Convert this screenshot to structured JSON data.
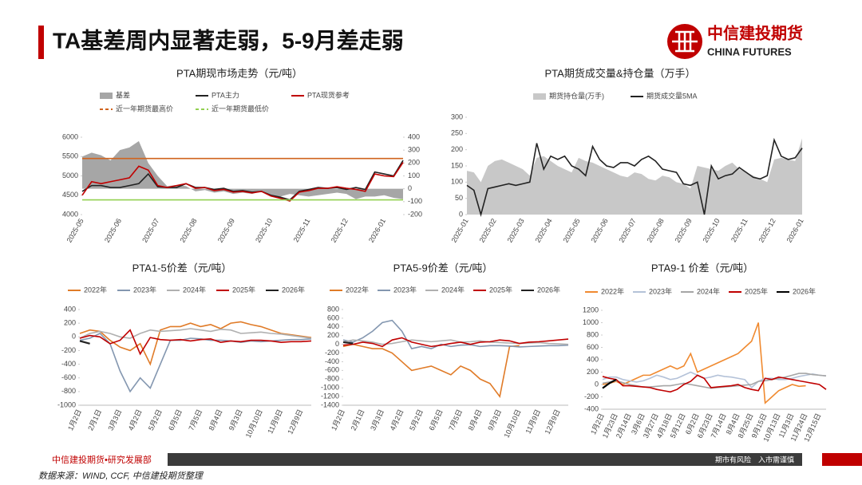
{
  "header": {
    "title": "TA基差周内显著走弱，5-9月差走弱",
    "logo_cn": "中信建投期货",
    "logo_en": "CHINA FUTURES"
  },
  "footer": {
    "left": "中信建投期货•研究发展部",
    "right": "期市有风险　入市需谨慎",
    "source": "数据来源：WIND, CCF, 中信建投期货整理"
  },
  "chart_data": [
    {
      "type": "line",
      "title": "PTA期现市场走势（元/吨）",
      "categories": [
        "2025-05",
        null,
        null,
        null,
        "2025-06",
        null,
        null,
        null,
        "2025-07",
        null,
        null,
        null,
        "2025-08",
        null,
        null,
        null,
        "2025-09",
        null,
        null,
        null,
        "2025-10",
        null,
        null,
        null,
        "2025-11",
        null,
        null,
        null,
        "2025-12",
        null,
        null,
        null,
        "2026-01",
        null,
        null
      ],
      "ylim": [
        4000,
        6000
      ],
      "yticks": [
        4000,
        4500,
        5000,
        5500,
        6000
      ],
      "y2lim": [
        -200,
        400
      ],
      "y2ticks": [
        -200,
        -100,
        0,
        100,
        200,
        300,
        400
      ],
      "series": [
        {
          "name": "基差",
          "type": "area",
          "axis": "y2",
          "color": "#a6a6a6",
          "values": [
            250,
            280,
            260,
            220,
            300,
            320,
            370,
            200,
            100,
            20,
            30,
            20,
            -20,
            -10,
            -30,
            -20,
            -40,
            -30,
            -40,
            -20,
            -50,
            -60,
            -40,
            -50,
            -60,
            -50,
            -40,
            -30,
            -40,
            -80,
            -60,
            -60,
            -50,
            -70,
            -80
          ]
        },
        {
          "name": "PTA主力",
          "type": "line",
          "color": "#222222",
          "values": [
            4600,
            4750,
            4750,
            4700,
            4700,
            4750,
            4800,
            5050,
            4720,
            4700,
            4700,
            4800,
            4700,
            4700,
            4650,
            4680,
            4600,
            4620,
            4580,
            4600,
            4500,
            4450,
            4380,
            4600,
            4650,
            4700,
            4680,
            4700,
            4650,
            4700,
            4650,
            5100,
            5050,
            5000,
            5400
          ]
        },
        {
          "name": "PTA现货参考",
          "type": "line",
          "color": "#c00000",
          "values": [
            4500,
            4850,
            4800,
            4850,
            4900,
            4950,
            5250,
            5150,
            4750,
            4700,
            4750,
            4800,
            4680,
            4700,
            4620,
            4650,
            4580,
            4600,
            4560,
            4600,
            4480,
            4420,
            4350,
            4580,
            4620,
            4680,
            4680,
            4720,
            4680,
            4650,
            4600,
            5050,
            5000,
            4980,
            5350
          ]
        }
      ],
      "hlines": [
        {
          "name": "近一年期货最高价",
          "value": 5450,
          "color": "#d0641e",
          "dash": true
        },
        {
          "name": "近一年期货最低价",
          "value": 4380,
          "color": "#92d050",
          "dash": true
        }
      ]
    },
    {
      "type": "line",
      "title": "PTA期货成交量&持仓量（万手）",
      "categories": [
        "2025-01",
        null,
        null,
        null,
        "2025-02",
        null,
        null,
        null,
        "2025-03",
        null,
        null,
        null,
        "2025-04",
        null,
        null,
        null,
        "2025-05",
        null,
        null,
        null,
        "2025-06",
        null,
        null,
        null,
        "2025-07",
        null,
        null,
        null,
        "2025-08",
        null,
        null,
        null,
        "2025-09",
        null,
        null,
        null,
        "2025-10",
        null,
        null,
        null,
        "2025-11",
        null,
        null,
        null,
        "2025-12",
        null,
        null,
        null,
        "2026-01"
      ],
      "ylim": [
        0,
        300
      ],
      "yticks": [
        0,
        50,
        100,
        150,
        200,
        250,
        300
      ],
      "series": [
        {
          "name": "期货持仓量(万手)",
          "type": "area",
          "color": "#c8c8c8",
          "values": [
            135,
            130,
            100,
            150,
            165,
            170,
            160,
            150,
            140,
            120,
            175,
            180,
            165,
            150,
            140,
            130,
            175,
            165,
            160,
            150,
            140,
            130,
            120,
            115,
            130,
            125,
            110,
            105,
            120,
            115,
            100,
            95,
            80,
            150,
            145,
            140,
            135,
            150,
            160,
            140,
            130,
            120,
            110,
            100,
            170,
            175,
            170,
            165,
            235
          ]
        },
        {
          "name": "期货成交量5MA",
          "type": "line",
          "color": "#222222",
          "values": [
            90,
            75,
            0,
            80,
            85,
            90,
            95,
            90,
            95,
            100,
            220,
            140,
            180,
            170,
            180,
            150,
            140,
            120,
            210,
            170,
            150,
            145,
            160,
            160,
            150,
            170,
            180,
            165,
            140,
            135,
            130,
            95,
            90,
            100,
            0,
            150,
            110,
            120,
            125,
            145,
            130,
            115,
            110,
            120,
            230,
            180,
            170,
            175,
            205
          ]
        }
      ]
    },
    {
      "type": "line",
      "title": "PTA1-5价差（元/吨）",
      "categories": [
        "1月2日",
        null,
        "2月1日",
        null,
        "3月3日",
        null,
        "4月2日",
        null,
        "5月2日",
        null,
        "6月5日",
        null,
        "7月5日",
        null,
        "8月4日",
        null,
        "9月3日",
        null,
        "10月10日",
        null,
        "11月9日",
        null,
        "12月9日",
        null
      ],
      "ylim": [
        -1000,
        400
      ],
      "yticks": [
        -1000,
        -800,
        -600,
        -400,
        -200,
        0,
        200,
        400
      ],
      "series": [
        {
          "name": "2022年",
          "color": "#e07b28",
          "values": [
            50,
            100,
            80,
            -50,
            -150,
            -200,
            -100,
            -400,
            100,
            150,
            150,
            200,
            150,
            180,
            120,
            200,
            220,
            180,
            150,
            100,
            50,
            30,
            10,
            -10
          ]
        },
        {
          "name": "2023年",
          "color": "#8497b0",
          "values": [
            -50,
            -20,
            50,
            -100,
            -500,
            -800,
            -600,
            -750,
            -400,
            -50,
            -50,
            -20,
            -30,
            -50,
            -50,
            -60,
            -80,
            -60,
            -70,
            -60,
            -50,
            -40,
            -40,
            -30
          ]
        },
        {
          "name": "2024年",
          "color": "#b0b0b0",
          "values": [
            -20,
            50,
            80,
            50,
            0,
            -20,
            50,
            100,
            80,
            90,
            100,
            120,
            100,
            80,
            110,
            100,
            50,
            60,
            70,
            50,
            40,
            20,
            0,
            -20
          ]
        },
        {
          "name": "2025年",
          "color": "#c00000",
          "values": [
            -20,
            20,
            0,
            -100,
            -50,
            100,
            -250,
            -10,
            -40,
            -50,
            -40,
            -60,
            -40,
            -30,
            -80,
            -60,
            -70,
            -50,
            -50,
            -60,
            -80,
            -70,
            -70,
            -60
          ]
        },
        {
          "name": "2026年",
          "color": "#222222",
          "values": [
            -60,
            -100,
            null,
            null,
            null,
            null,
            null,
            null,
            null,
            null,
            null,
            null,
            null,
            null,
            null,
            null,
            null,
            null,
            null,
            null,
            null,
            null,
            null,
            null
          ]
        }
      ]
    },
    {
      "type": "line",
      "title": "PTA5-9价差（元/吨）",
      "categories": [
        "1月2日",
        null,
        "2月1日",
        null,
        "3月3日",
        null,
        "4月2日",
        null,
        "5月2日",
        null,
        "6月5日",
        null,
        "7月5日",
        null,
        "8月4日",
        null,
        "9月3日",
        null,
        "10月10日",
        null,
        "11月9日",
        null,
        "12月9日",
        null
      ],
      "ylim": [
        -1400,
        800
      ],
      "yticks": [
        -1400,
        -1200,
        -1000,
        -800,
        -600,
        -400,
        -200,
        0,
        200,
        400,
        600,
        800
      ],
      "series": [
        {
          "name": "2022年",
          "color": "#e07b28",
          "values": [
            -50,
            0,
            -50,
            -100,
            -100,
            -200,
            -400,
            -600,
            -550,
            -500,
            -600,
            -700,
            -500,
            -600,
            -800,
            -900,
            -1200,
            -50,
            -30,
            null,
            null,
            null,
            null,
            null
          ]
        },
        {
          "name": "2023年",
          "color": "#8497b0",
          "values": [
            100,
            50,
            150,
            300,
            500,
            550,
            300,
            -100,
            -50,
            -100,
            0,
            -50,
            -20,
            -10,
            -50,
            -30,
            -30,
            -40,
            -60,
            -50,
            -40,
            -30,
            -30,
            -20
          ]
        },
        {
          "name": "2024年",
          "color": "#b0b0b0",
          "values": [
            50,
            100,
            80,
            50,
            0,
            20,
            60,
            100,
            80,
            60,
            80,
            100,
            50,
            60,
            80,
            50,
            40,
            30,
            20,
            30,
            40,
            20,
            10,
            0
          ]
        },
        {
          "name": "2025年",
          "color": "#c00000",
          "values": [
            -20,
            0,
            50,
            20,
            -50,
            100,
            150,
            50,
            0,
            -50,
            -20,
            20,
            50,
            0,
            50,
            60,
            100,
            80,
            20,
            50,
            60,
            80,
            100,
            120
          ]
        },
        {
          "name": "2026年",
          "color": "#222222",
          "values": [
            50,
            20,
            null,
            null,
            null,
            null,
            null,
            null,
            null,
            null,
            null,
            null,
            null,
            null,
            null,
            null,
            null,
            null,
            null,
            null,
            null,
            null,
            null,
            null
          ]
        }
      ]
    },
    {
      "type": "line",
      "title": "PTA9-1 价差（元/吨）",
      "categories": [
        "1月2日",
        null,
        "1月23日",
        null,
        "2月14日",
        null,
        "3月6日",
        null,
        "3月27日",
        null,
        "4月18日",
        null,
        "5月12日",
        null,
        "6月2日",
        null,
        "6月23日",
        null,
        "7月14日",
        null,
        "8月4日",
        null,
        "8月25日",
        null,
        "9月15日",
        null,
        "10月13日",
        null,
        "11月3日",
        null,
        "11月24日",
        null,
        "12月15日",
        null
      ],
      "ylim": [
        -400,
        1200
      ],
      "yticks": [
        -400,
        -200,
        0,
        200,
        400,
        600,
        800,
        1000,
        1200
      ],
      "series": [
        {
          "name": "2022年",
          "color": "#f08a30",
          "values": [
            0,
            20,
            50,
            0,
            50,
            100,
            150,
            150,
            200,
            250,
            300,
            250,
            300,
            500,
            200,
            250,
            300,
            350,
            400,
            450,
            500,
            600,
            700,
            1000,
            -300,
            -200,
            -100,
            -50,
            0,
            -30,
            -20,
            null,
            null,
            null
          ]
        },
        {
          "name": "2023年",
          "color": "#b4c2d8",
          "values": [
            80,
            120,
            120,
            80,
            60,
            40,
            60,
            100,
            150,
            120,
            80,
            100,
            150,
            200,
            150,
            100,
            120,
            150,
            130,
            120,
            100,
            80,
            -50,
            50,
            100,
            100,
            80,
            80,
            100,
            130,
            150,
            170,
            150,
            140
          ]
        },
        {
          "name": "2024年",
          "color": "#a6a6a6",
          "values": [
            20,
            40,
            60,
            30,
            0,
            -20,
            -40,
            -40,
            -30,
            -20,
            -20,
            0,
            20,
            0,
            -20,
            -40,
            -60,
            -50,
            -40,
            -30,
            -20,
            -10,
            0,
            50,
            60,
            80,
            100,
            120,
            150,
            180,
            180,
            160,
            150,
            140
          ]
        },
        {
          "name": "2025年",
          "color": "#c00000",
          "values": [
            130,
            100,
            80,
            -20,
            -20,
            -30,
            -40,
            -50,
            -80,
            -100,
            -120,
            -80,
            0,
            50,
            150,
            100,
            -50,
            -40,
            -30,
            -20,
            0,
            -50,
            -80,
            -100,
            100,
            80,
            120,
            100,
            80,
            60,
            40,
            20,
            0,
            -80
          ]
        },
        {
          "name": "2026年",
          "color": "#000000",
          "values": [
            -60,
            20,
            80,
            null,
            null,
            null,
            null,
            null,
            null,
            null,
            null,
            null,
            null,
            null,
            null,
            null,
            null,
            null,
            null,
            null,
            null,
            null,
            null,
            null,
            null,
            null,
            null,
            null,
            null,
            null,
            null,
            null,
            null,
            null
          ]
        }
      ]
    }
  ]
}
